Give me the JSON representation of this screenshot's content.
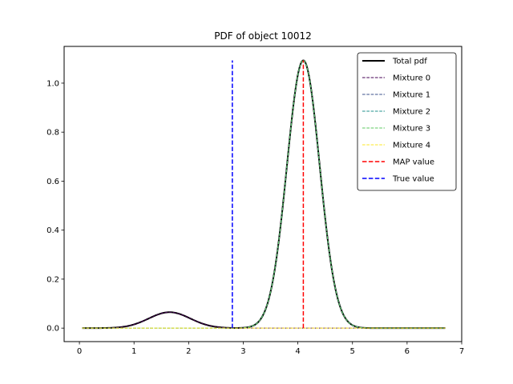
{
  "chart_data": {
    "type": "line",
    "title": "PDF of object 10012",
    "xlabel": "",
    "ylabel": "",
    "xlim": [
      -0.28,
      7.0
    ],
    "ylim": [
      -0.055,
      1.15
    ],
    "x_ticks": [
      0,
      1,
      2,
      3,
      4,
      5,
      6,
      7
    ],
    "y_ticks": [
      0.0,
      0.2,
      0.4,
      0.6,
      0.8,
      1.0
    ],
    "x_tick_labels": [
      "0",
      "1",
      "2",
      "3",
      "4",
      "5",
      "6",
      "7"
    ],
    "y_tick_labels": [
      "0.0",
      "0.2",
      "0.4",
      "0.6",
      "0.8",
      "1.0"
    ],
    "grid": false,
    "legend_position": "top-right",
    "x_domain": [
      0.05,
      6.7
    ],
    "series": [
      {
        "name": "Total pdf",
        "color": "#000000",
        "style": "solid",
        "components": [
          [
            0.065,
            1.65,
            0.38
          ],
          [
            1.093,
            4.1,
            0.3
          ]
        ]
      },
      {
        "name": "Mixture 0",
        "color": "#440154",
        "style": "dashed",
        "components": [
          [
            0.065,
            1.65,
            0.38
          ]
        ]
      },
      {
        "name": "Mixture 1",
        "color": "#3b528b",
        "style": "dashed",
        "components": [
          [
            1.093,
            4.1,
            0.3
          ]
        ]
      },
      {
        "name": "Mixture 2",
        "color": "#21918c",
        "style": "dashed",
        "components": [
          [
            1.093,
            4.1,
            0.3
          ]
        ]
      },
      {
        "name": "Mixture 3",
        "color": "#5ec962",
        "style": "dashed",
        "components": [
          [
            1.093,
            4.1,
            0.3
          ]
        ]
      },
      {
        "name": "Mixture 4",
        "color": "#fde725",
        "style": "dashed",
        "components": []
      }
    ],
    "vlines": [
      {
        "name": "MAP value",
        "color": "#ff0000",
        "x": 4.1,
        "y_range": [
          0,
          1.093
        ]
      },
      {
        "name": "True value",
        "color": "#0000ff",
        "x": 2.8,
        "y_range": [
          0,
          1.093
        ]
      }
    ]
  }
}
